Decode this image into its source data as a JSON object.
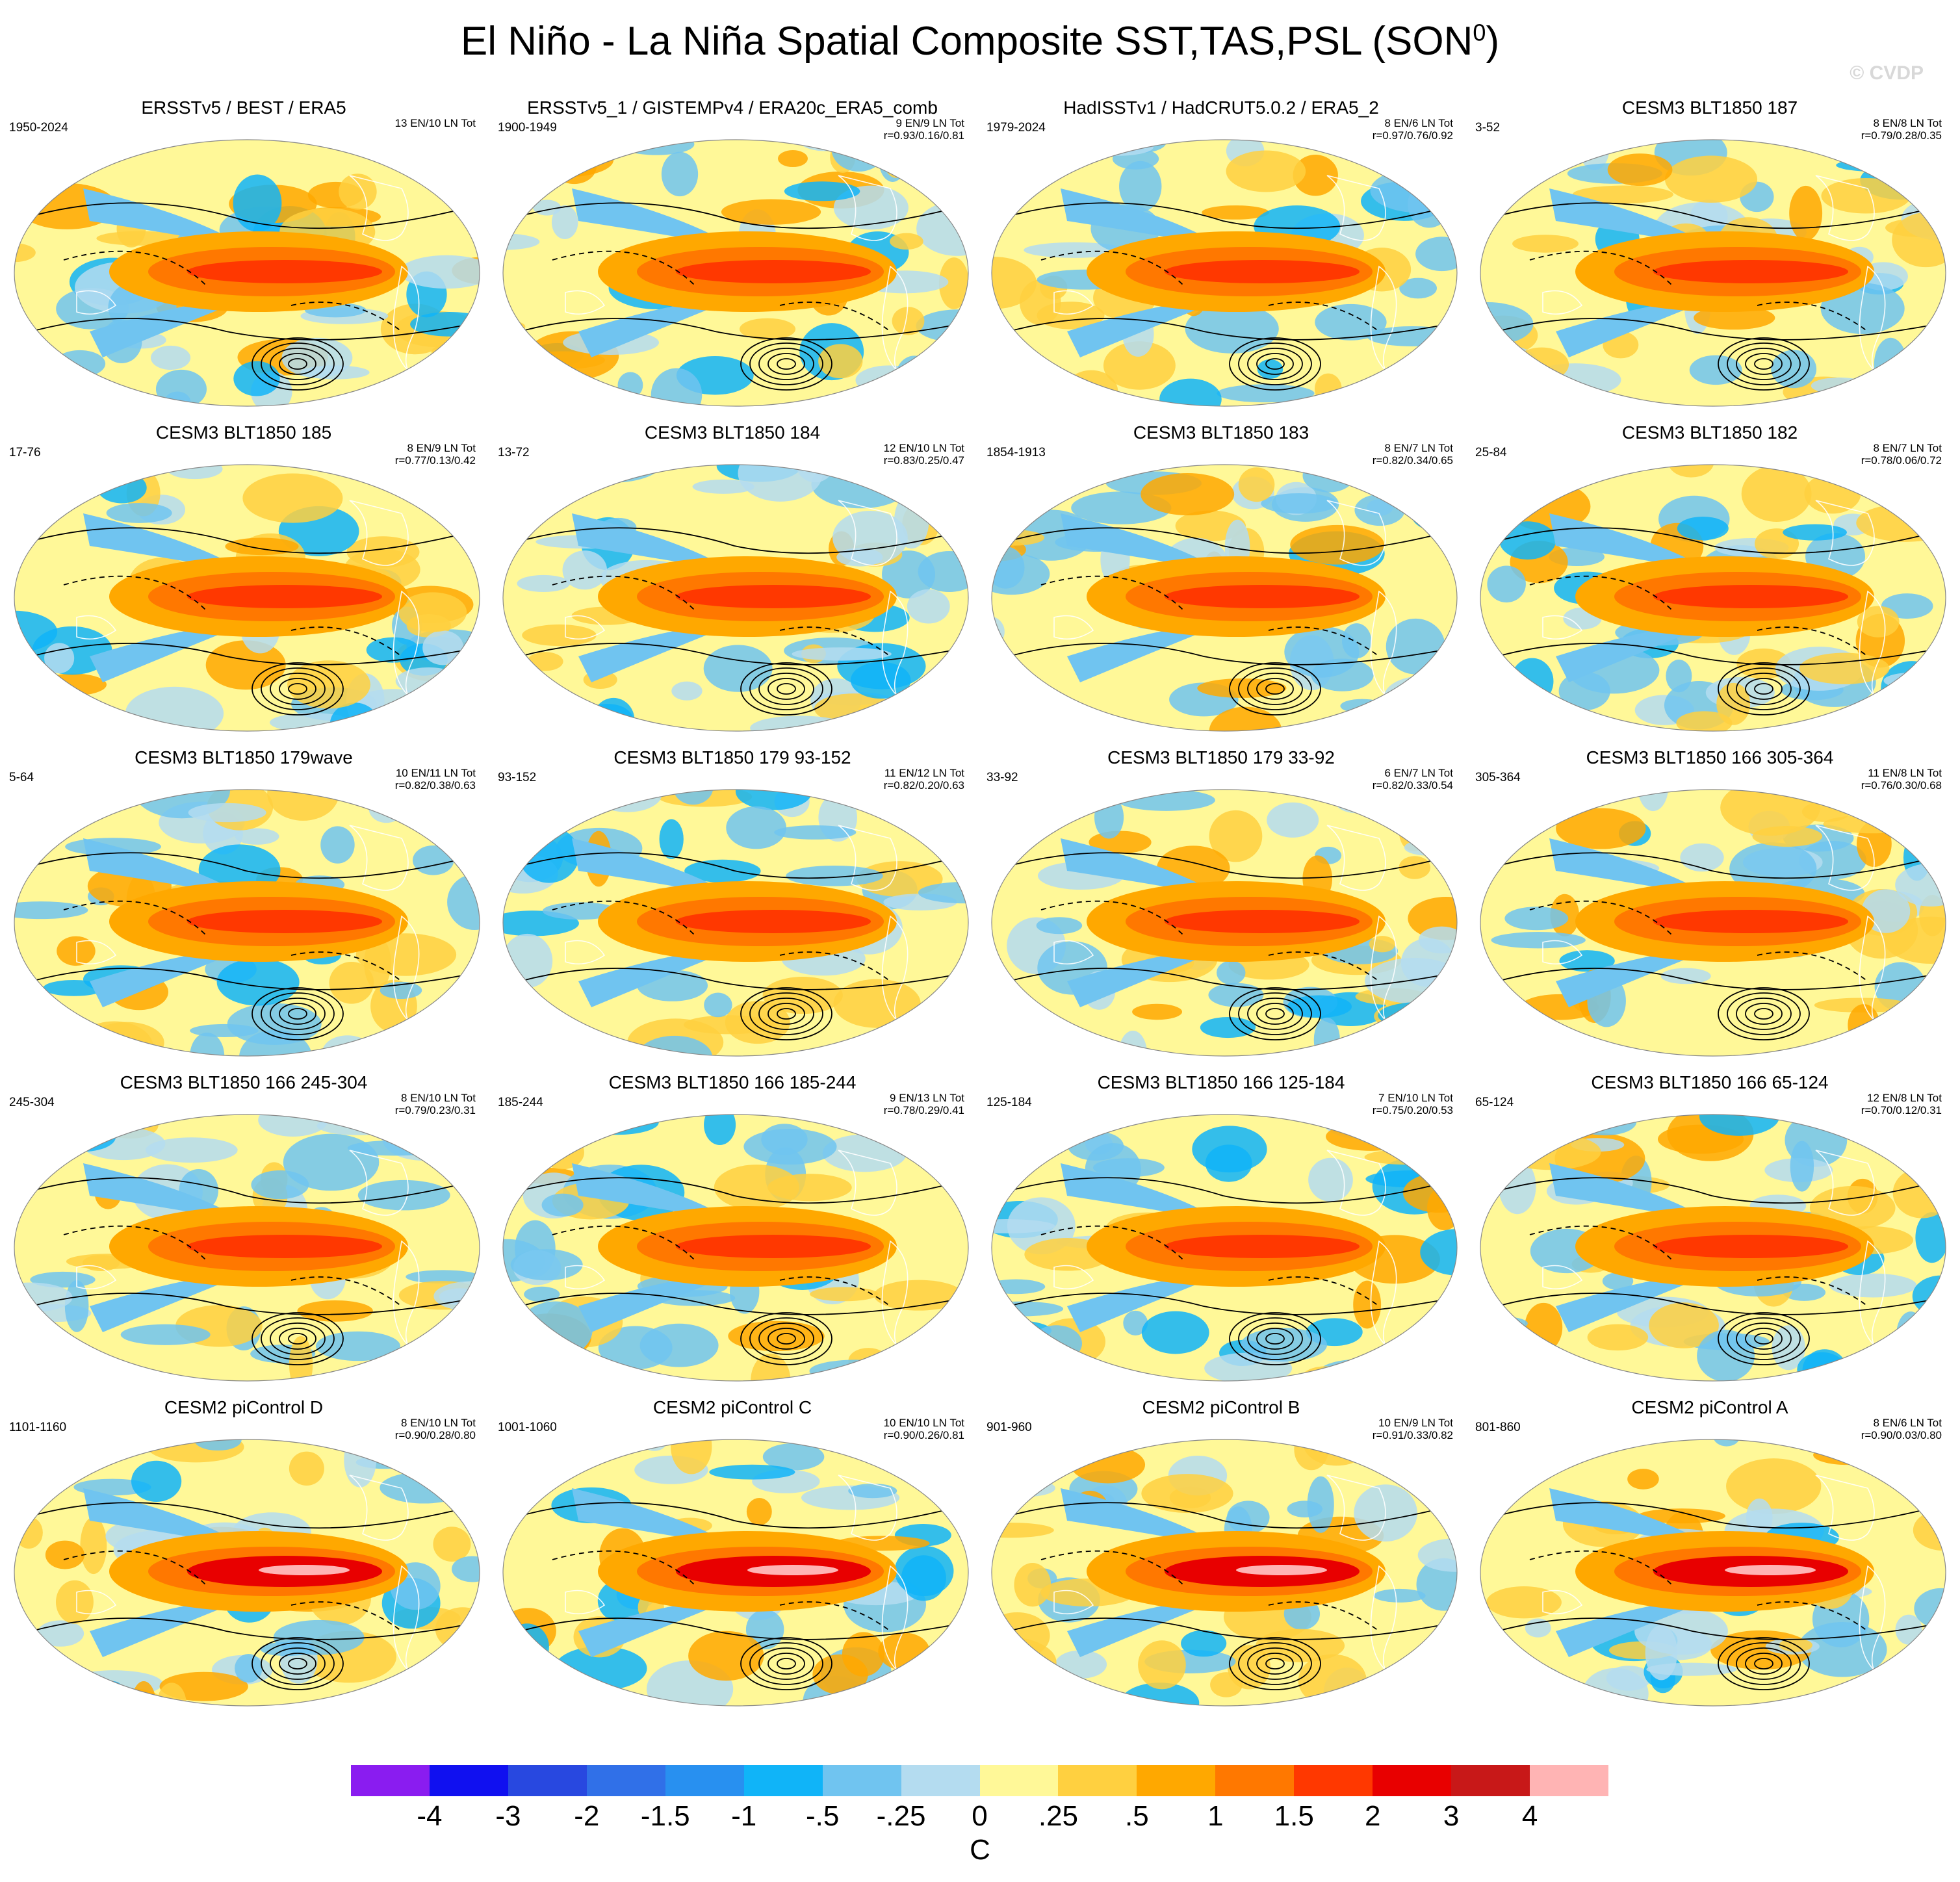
{
  "title": "El Niño - La Niña Spatial Composite SST,TAS,PSL (SON",
  "title_sup": "0",
  "title_close": ")",
  "watermark": "© CVDP",
  "panels": [
    {
      "title": "ERSSTv5 / BEST / ERA5",
      "years": "1950-2024",
      "count": "13 EN/10 LN Tot",
      "corr": "",
      "shade": "obs"
    },
    {
      "title": "ERSSTv5_1 / GISTEMPv4 / ERA20c_ERA5_comb",
      "years": "1900-1949",
      "count": "9 EN/9 LN Tot",
      "corr": "r=0.93/0.16/0.81",
      "shade": "obs"
    },
    {
      "title": "HadISSTv1 / HadCRUT5.0.2 / ERA5_2",
      "years": "1979-2024",
      "count": "8 EN/6 LN Tot",
      "corr": "r=0.97/0.76/0.92",
      "shade": "obs"
    },
    {
      "title": "CESM3 BLT1850 187",
      "years": "3-52",
      "count": "8 EN/8 LN Tot",
      "corr": "r=0.79/0.28/0.35",
      "shade": "model"
    },
    {
      "title": "CESM3 BLT1850 185",
      "years": "17-76",
      "count": "8 EN/9 LN Tot",
      "corr": "r=0.77/0.13/0.42",
      "shade": "model"
    },
    {
      "title": "CESM3 BLT1850 184",
      "years": "13-72",
      "count": "12 EN/10 LN Tot",
      "corr": "r=0.83/0.25/0.47",
      "shade": "model"
    },
    {
      "title": "CESM3 BLT1850 183",
      "years": "1854-1913",
      "count": "8 EN/7 LN Tot",
      "corr": "r=0.82/0.34/0.65",
      "shade": "model"
    },
    {
      "title": "CESM3 BLT1850 182",
      "years": "25-84",
      "count": "8 EN/7 LN Tot",
      "corr": "r=0.78/0.06/0.72",
      "shade": "model"
    },
    {
      "title": "CESM3 BLT1850 179wave",
      "years": "5-64",
      "count": "10 EN/11 LN Tot",
      "corr": "r=0.82/0.38/0.63",
      "shade": "model"
    },
    {
      "title": "CESM3 BLT1850 179 93-152",
      "years": "93-152",
      "count": "11 EN/12 LN Tot",
      "corr": "r=0.82/0.20/0.63",
      "shade": "model"
    },
    {
      "title": "CESM3 BLT1850 179 33-92",
      "years": "33-92",
      "count": "6 EN/7 LN Tot",
      "corr": "r=0.82/0.33/0.54",
      "shade": "model"
    },
    {
      "title": "CESM3 BLT1850 166 305-364",
      "years": "305-364",
      "count": "11 EN/8 LN Tot",
      "corr": "r=0.76/0.30/0.68",
      "shade": "model"
    },
    {
      "title": "CESM3 BLT1850 166 245-304",
      "years": "245-304",
      "count": "8 EN/10 LN Tot",
      "corr": "r=0.79/0.23/0.31",
      "shade": "model"
    },
    {
      "title": "CESM3 BLT1850 166 185-244",
      "years": "185-244",
      "count": "9 EN/13 LN Tot",
      "corr": "r=0.78/0.29/0.41",
      "shade": "model"
    },
    {
      "title": "CESM3 BLT1850 166 125-184",
      "years": "125-184",
      "count": "7 EN/10 LN Tot",
      "corr": "r=0.75/0.20/0.53",
      "shade": "model"
    },
    {
      "title": "CESM3 BLT1850 166 65-124",
      "years": "65-124",
      "count": "12 EN/8 LN Tot",
      "corr": "r=0.70/0.12/0.31",
      "shade": "model"
    },
    {
      "title": "CESM2 piControl D",
      "years": "1101-1160",
      "count": "8 EN/10 LN Tot",
      "corr": "r=0.90/0.28/0.80",
      "shade": "strong"
    },
    {
      "title": "CESM2 piControl C",
      "years": "1001-1060",
      "count": "10 EN/10 LN Tot",
      "corr": "r=0.90/0.26/0.81",
      "shade": "strong"
    },
    {
      "title": "CESM2 piControl B",
      "years": "901-960",
      "count": "10 EN/9 LN Tot",
      "corr": "r=0.91/0.33/0.82",
      "shade": "strong"
    },
    {
      "title": "CESM2 piControl A",
      "years": "801-860",
      "count": "8 EN/6 LN Tot",
      "corr": "r=0.90/0.03/0.80",
      "shade": "strong"
    }
  ],
  "colorbar": {
    "colors": [
      "#8a1cf0",
      "#1010f0",
      "#2848e0",
      "#3070e8",
      "#2890f0",
      "#10b4f8",
      "#70c4f0",
      "#b4dcf0",
      "#fff898",
      "#ffd040",
      "#ffa800",
      "#ff7800",
      "#ff3800",
      "#e80000",
      "#c81818",
      "#ffb4b4"
    ],
    "labels": [
      "-4",
      "-3",
      "-2",
      "-1.5",
      "-1",
      "-.5",
      "-.25",
      "0",
      ".25",
      ".5",
      "1",
      "1.5",
      "2",
      "3",
      "4"
    ],
    "unit": "C"
  }
}
